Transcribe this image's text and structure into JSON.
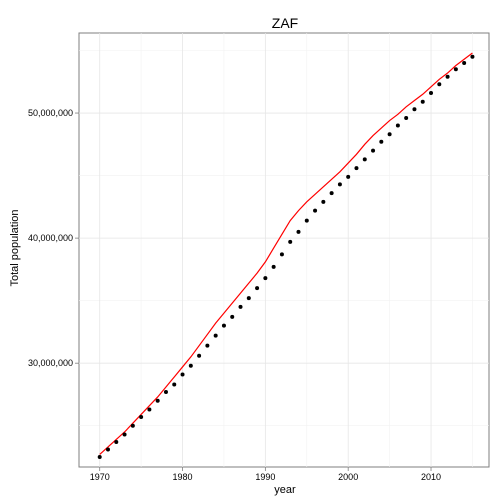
{
  "chart_data": {
    "type": "scatter",
    "title": "ZAF",
    "xlabel": "year",
    "ylabel": "Total population",
    "xlim": [
      1967.5,
      2017
    ],
    "ylim": [
      21700000,
      56400000
    ],
    "x_ticks": [
      1970,
      1980,
      1990,
      2000,
      2010
    ],
    "x_tick_labels": [
      "1970",
      "1980",
      "1990",
      "2000",
      "2010"
    ],
    "y_ticks": [
      30000000,
      40000000,
      50000000
    ],
    "y_tick_labels": [
      "30,000,000",
      "40,000,000",
      "50,000,000"
    ],
    "grid": true,
    "legend": "none",
    "series": [
      {
        "kind": "points",
        "color": "#000000",
        "x": [
          1970,
          1971,
          1972,
          1973,
          1974,
          1975,
          1976,
          1977,
          1978,
          1979,
          1980,
          1981,
          1982,
          1983,
          1984,
          1985,
          1986,
          1987,
          1988,
          1989,
          1990,
          1991,
          1992,
          1993,
          1994,
          1995,
          1996,
          1997,
          1998,
          1999,
          2000,
          2001,
          2002,
          2003,
          2004,
          2005,
          2006,
          2007,
          2008,
          2009,
          2010,
          2011,
          2012,
          2013,
          2014,
          2015
        ],
        "y": [
          22500000,
          23100000,
          23700000,
          24300000,
          25000000,
          25700000,
          26300000,
          27000000,
          27700000,
          28300000,
          29100000,
          29800000,
          30600000,
          31400000,
          32200000,
          33000000,
          33700000,
          34500000,
          35200000,
          36000000,
          36800000,
          37700000,
          38700000,
          39700000,
          40500000,
          41400000,
          42200000,
          42900000,
          43600000,
          44300000,
          44900000,
          45600000,
          46300000,
          47000000,
          47700000,
          48300000,
          49000000,
          49600000,
          50300000,
          50900000,
          51600000,
          52300000,
          52900000,
          53500000,
          54000000,
          54500000
        ]
      },
      {
        "kind": "line",
        "color": "#ff0000",
        "x": [
          1970,
          1971,
          1972,
          1973,
          1974,
          1975,
          1976,
          1977,
          1978,
          1979,
          1980,
          1981,
          1982,
          1983,
          1984,
          1985,
          1986,
          1987,
          1988,
          1989,
          1990,
          1991,
          1992,
          1993,
          1994,
          1995,
          1996,
          1997,
          1998,
          1999,
          2000,
          2001,
          2002,
          2003,
          2004,
          2005,
          2006,
          2007,
          2008,
          2009,
          2010,
          2011,
          2012,
          2013,
          2014,
          2015
        ],
        "y": [
          22700000,
          23300000,
          23900000,
          24500000,
          25200000,
          25900000,
          26600000,
          27300000,
          28100000,
          28900000,
          29700000,
          30500000,
          31400000,
          32300000,
          33200000,
          34000000,
          34800000,
          35600000,
          36400000,
          37200000,
          38100000,
          39200000,
          40300000,
          41400000,
          42200000,
          42900000,
          43500000,
          44100000,
          44700000,
          45300000,
          46000000,
          46700000,
          47500000,
          48200000,
          48800000,
          49400000,
          49900000,
          50500000,
          51000000,
          51500000,
          52100000,
          52700000,
          53200000,
          53800000,
          54300000,
          54800000
        ]
      }
    ]
  }
}
